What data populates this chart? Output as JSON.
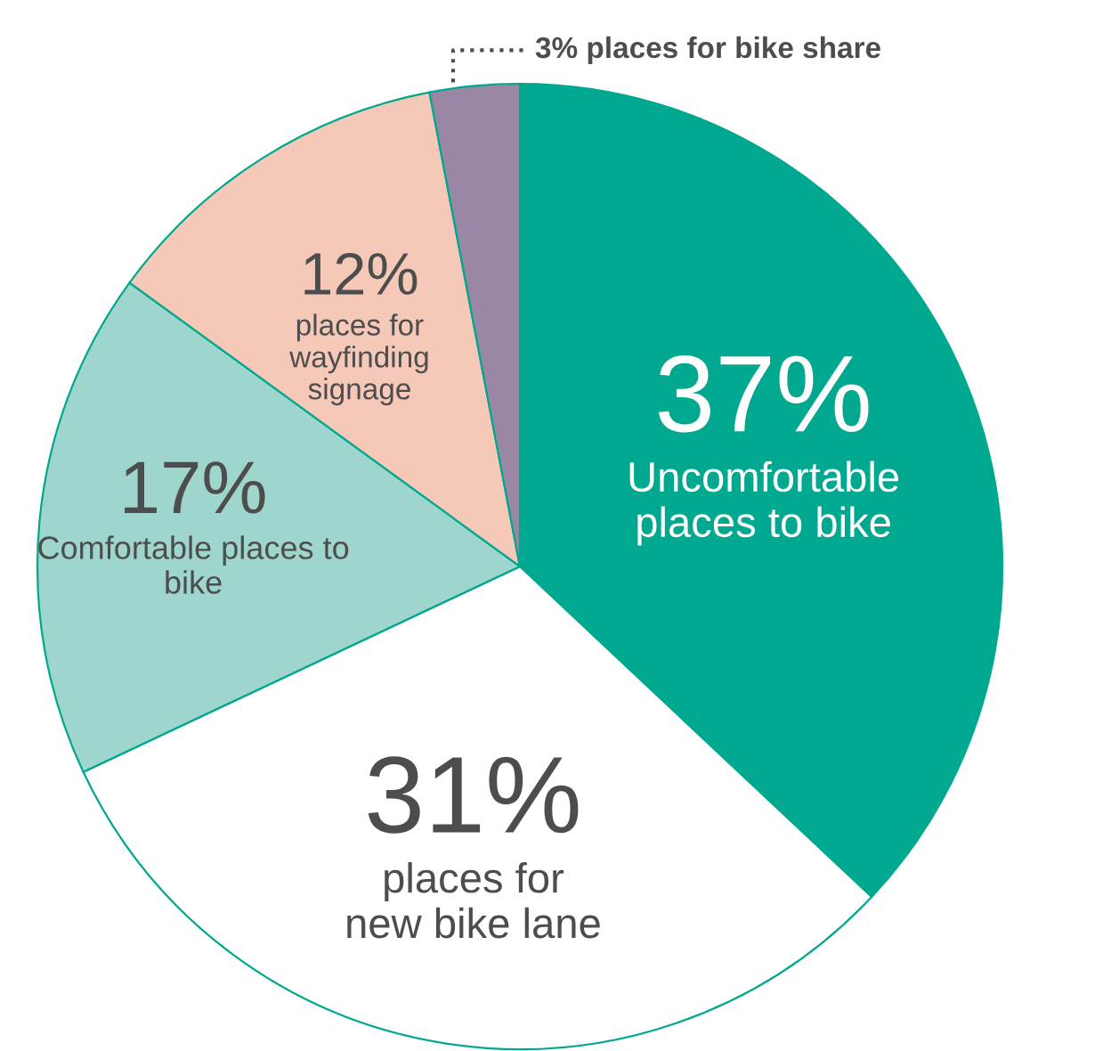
{
  "chart_data": {
    "type": "pie",
    "categories": [
      "Uncomfortable\nplaces to bike",
      "places for\nnew bike lane",
      "Comfortable places to\nbike",
      "places for\nwayfinding\nsignage",
      "places for bike share"
    ],
    "values": [
      37,
      31,
      17,
      12,
      3
    ],
    "value_labels": [
      "37%",
      "31%",
      "17%",
      "12%",
      "3%"
    ],
    "colors": [
      "#00a88f",
      "#ffffff",
      "#9ed5cc",
      "#f5c8b8",
      "#9a87a6"
    ],
    "legend": false
  }
}
